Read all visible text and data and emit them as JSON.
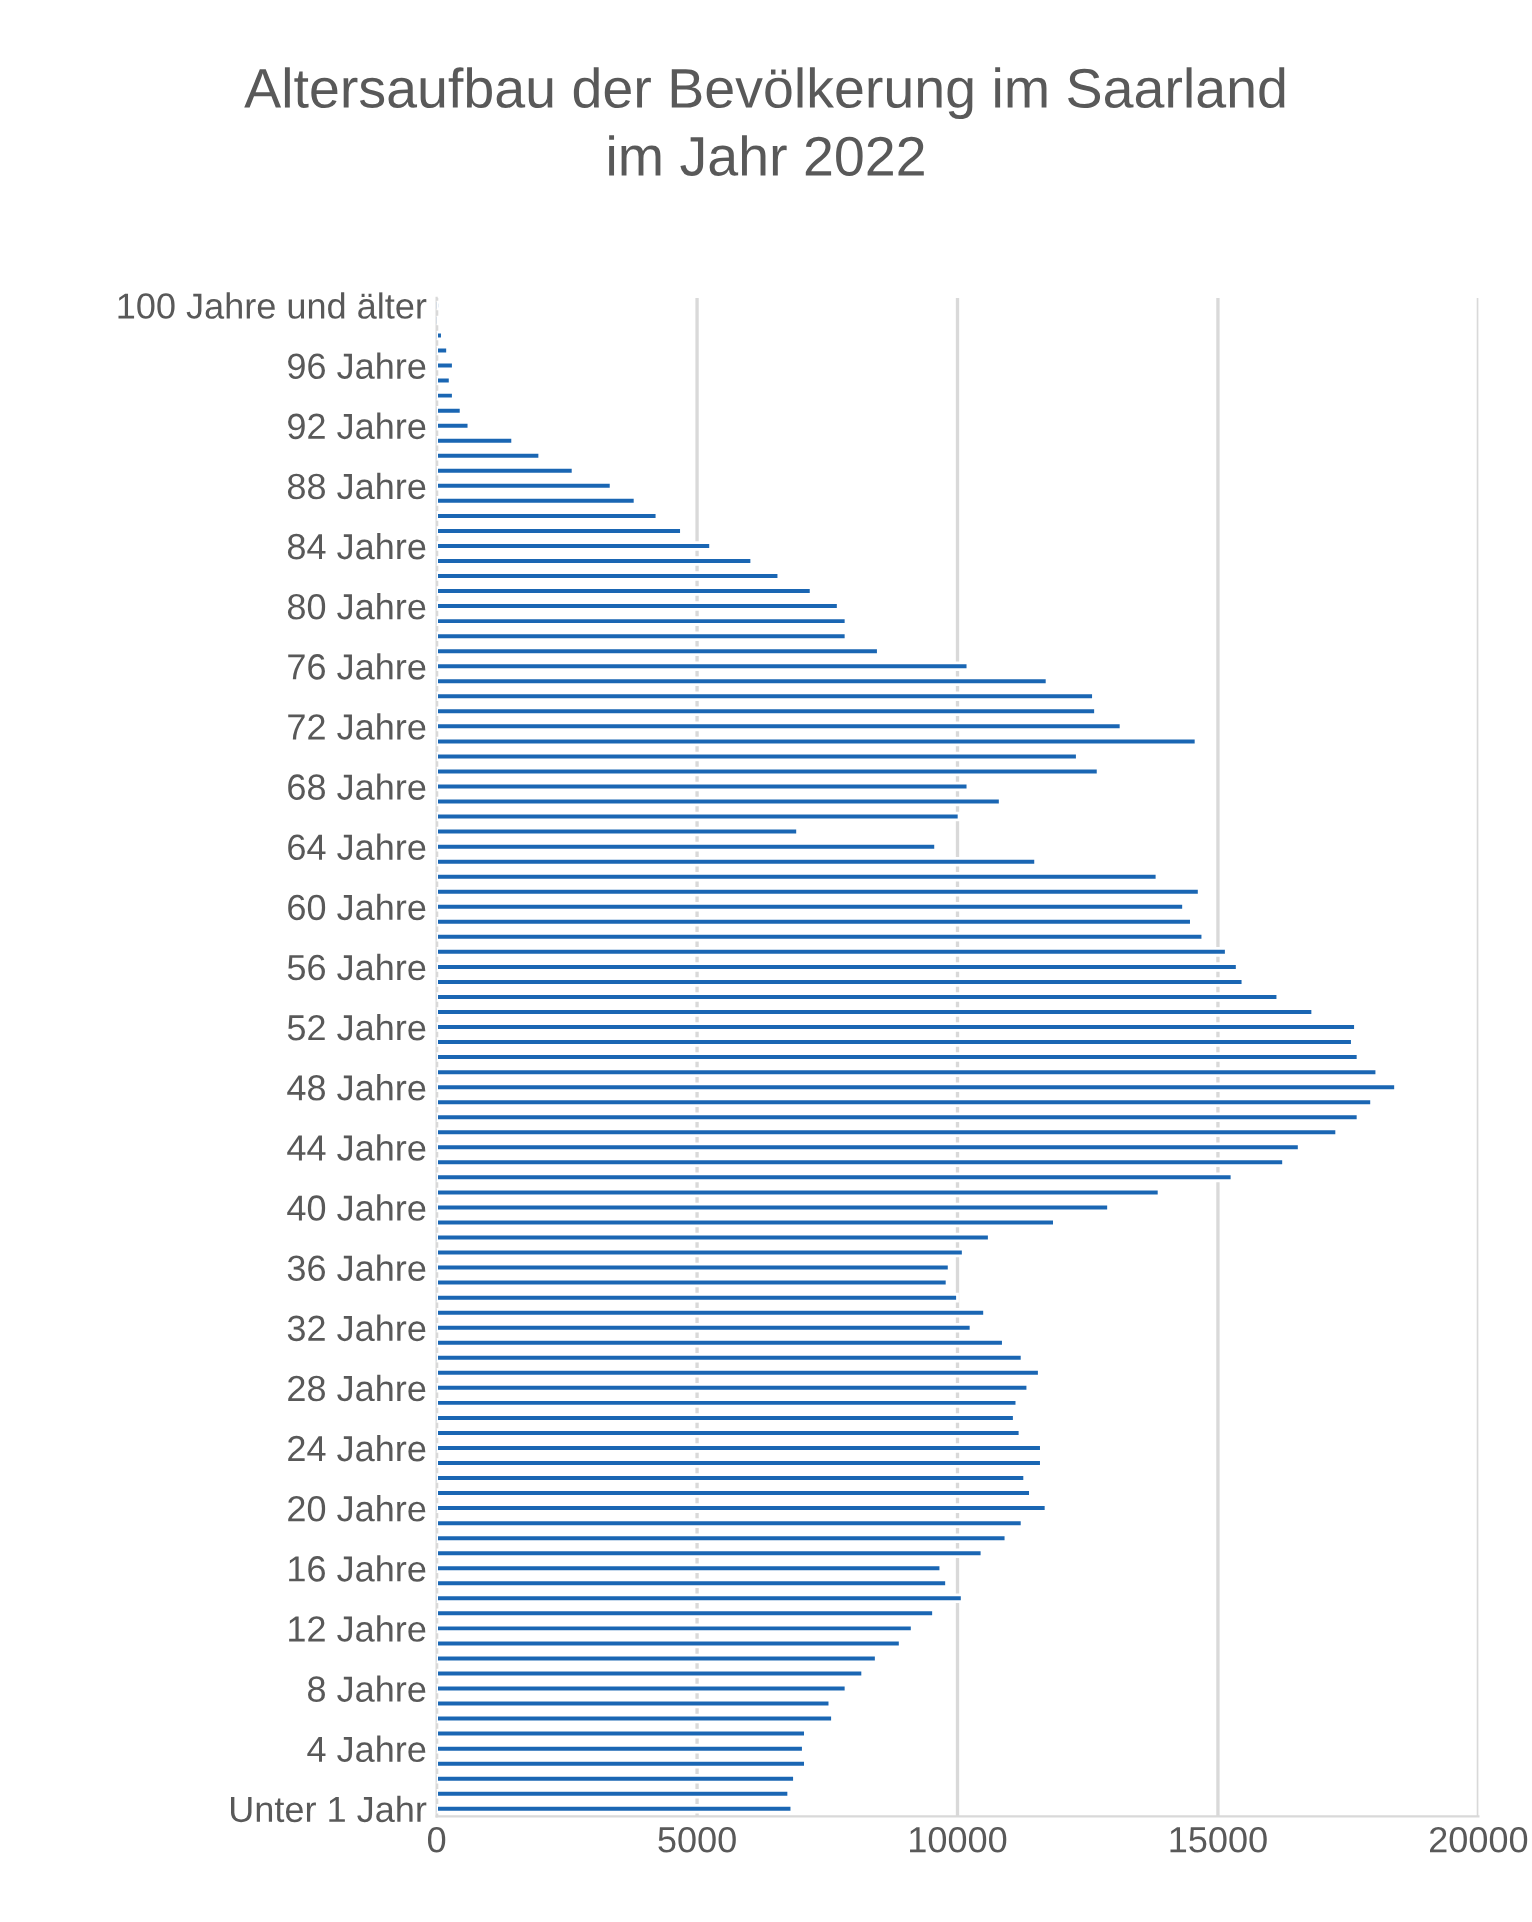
{
  "chart_data": {
    "type": "bar",
    "orientation": "horizontal",
    "title": "Altersaufbau der Bevölkerung im Saarland\nim Jahr 2022",
    "categories": [
      "100 Jahre und älter",
      null,
      null,
      null,
      "96 Jahre",
      null,
      null,
      null,
      "92 Jahre",
      null,
      null,
      null,
      "88 Jahre",
      null,
      null,
      null,
      "84 Jahre",
      null,
      null,
      null,
      "80 Jahre",
      null,
      null,
      null,
      "76 Jahre",
      null,
      null,
      null,
      "72 Jahre",
      null,
      null,
      null,
      "68 Jahre",
      null,
      null,
      null,
      "64 Jahre",
      null,
      null,
      null,
      "60 Jahre",
      null,
      null,
      null,
      "56 Jahre",
      null,
      null,
      null,
      "52 Jahre",
      null,
      null,
      null,
      "48 Jahre",
      null,
      null,
      null,
      "44 Jahre",
      null,
      null,
      null,
      "40 Jahre",
      null,
      null,
      null,
      "36 Jahre",
      null,
      null,
      null,
      "32 Jahre",
      null,
      null,
      null,
      "28 Jahre",
      null,
      null,
      null,
      "24 Jahre",
      null,
      null,
      null,
      "20 Jahre",
      null,
      null,
      null,
      "16 Jahre",
      null,
      null,
      null,
      "12 Jahre",
      null,
      null,
      null,
      "8 Jahre",
      null,
      null,
      null,
      "4 Jahre",
      null,
      null,
      null,
      "Unter 1 Jahr"
    ],
    "values": [
      55,
      40,
      110,
      210,
      320,
      260,
      320,
      470,
      620,
      1460,
      1980,
      2620,
      3350,
      3810,
      4230,
      4700,
      5260,
      6050,
      6570,
      7190,
      7710,
      7860,
      7860,
      8480,
      10200,
      11720,
      12610,
      12650,
      13140,
      14580,
      12300,
      12700,
      10200,
      10820,
      10030,
      6930,
      9580,
      11500,
      13830,
      14640,
      14340,
      14490,
      14710,
      15160,
      15370,
      15480,
      16150,
      16820,
      17640,
      17580,
      17690,
      18050,
      18410,
      17950,
      17690,
      17280,
      16560,
      16260,
      15270,
      13870,
      12900,
      11860,
      10610,
      10110,
      9840,
      9800,
      10000,
      10520,
      10260,
      10880,
      11240,
      11570,
      11350,
      11140,
      11090,
      11200,
      11610,
      11610,
      11290,
      11400,
      11700,
      11240,
      10930,
      10470,
      9680,
      9790,
      10090,
      9540,
      9130,
      8900,
      8440,
      8180,
      7860,
      7550,
      7600,
      7080,
      7040,
      7080,
      6870,
      6760,
      6820
    ],
    "color": "#1a66b3",
    "xlim": [
      0,
      20000
    ],
    "xticks": [
      0,
      5000,
      10000,
      15000,
      20000
    ],
    "grid": "x"
  }
}
